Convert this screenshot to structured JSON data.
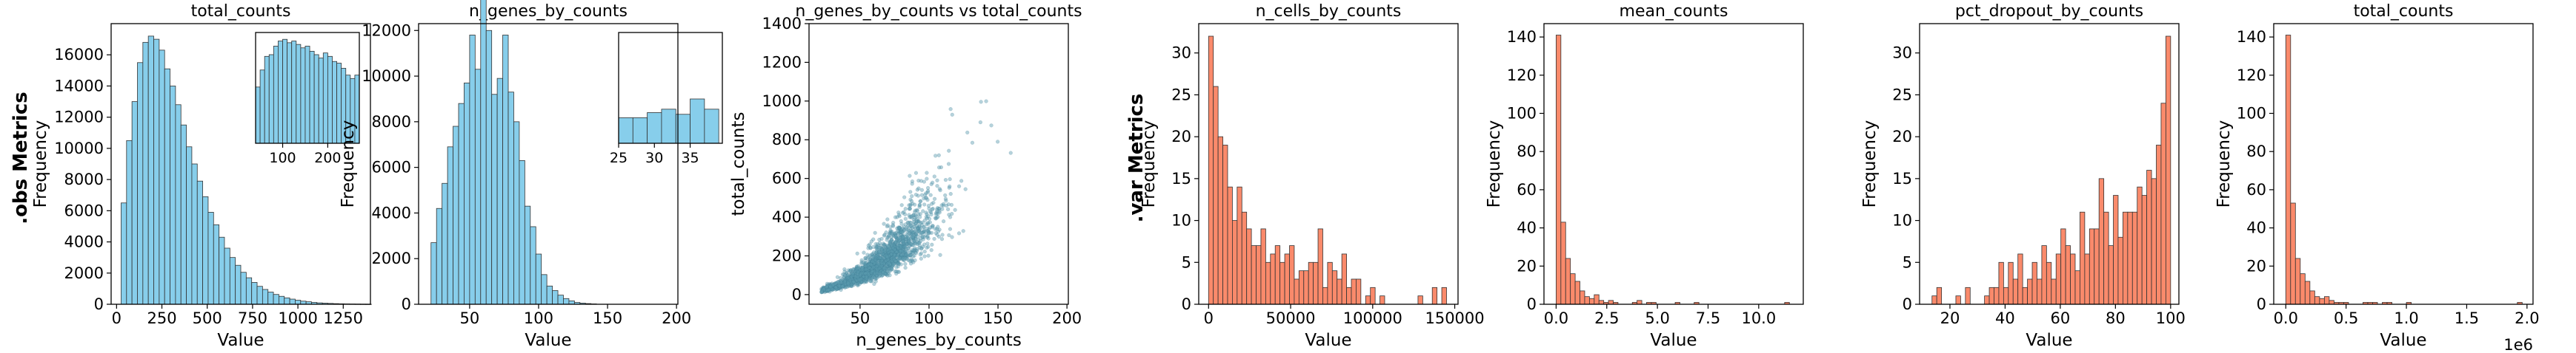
{
  "row_labels": {
    "obs": ".obs Metrics",
    "var": ".var Metrics"
  },
  "colors": {
    "obs": "#87CEEB",
    "var": "#FA8A6B",
    "scatter": "#5B9BB0",
    "edge": "#333333"
  },
  "chart_data": [
    {
      "type": "bar",
      "id": "p1",
      "title": "total_counts",
      "xlabel": "Value",
      "ylabel": "Frequency",
      "row": "obs",
      "binStart": 25,
      "binWidth": 30,
      "xlim": [
        -30,
        1400
      ],
      "ylim": [
        0,
        18000
      ],
      "xticks": [
        0,
        250,
        500,
        750,
        1000,
        1250
      ],
      "yticks": [
        0,
        2000,
        4000,
        6000,
        8000,
        10000,
        12000,
        14000,
        16000
      ],
      "values": [
        6500,
        10500,
        13000,
        15500,
        16800,
        17200,
        17000,
        16300,
        15100,
        14000,
        12800,
        11500,
        10100,
        9000,
        7900,
        6900,
        5900,
        5100,
        4300,
        3600,
        3000,
        2500,
        2050,
        1700,
        1400,
        1150,
        950,
        780,
        630,
        510,
        410,
        330,
        260,
        200,
        160,
        120,
        90,
        70,
        55,
        40,
        30,
        22,
        16,
        12,
        8,
        6
      ],
      "inset": {
        "binStart": 40,
        "binWidth": 10,
        "xlim": [
          40,
          270
        ],
        "ylim": [
          0,
          6500
        ],
        "xticks": [
          100,
          200
        ],
        "values": [
          3300,
          4300,
          5100,
          5200,
          5700,
          6000,
          6100,
          5900,
          6000,
          5800,
          5600,
          5700,
          5400,
          5200,
          5000,
          5300,
          5100,
          4800,
          4700,
          4400,
          4000,
          3800,
          4000
        ]
      }
    },
    {
      "type": "bar",
      "id": "p2",
      "title": "n_genes_by_counts",
      "xlabel": "Value",
      "ylabel": "Frequency",
      "row": "obs",
      "binStart": 22,
      "binWidth": 4,
      "xlim": [
        13,
        201
      ],
      "ylim": [
        0,
        12300
      ],
      "xticks": [
        50,
        100,
        150,
        200
      ],
      "yticks": [
        0,
        2000,
        4000,
        6000,
        8000,
        10000,
        12000
      ],
      "values": [
        2700,
        4200,
        5300,
        6900,
        7800,
        8800,
        9700,
        11800,
        10300,
        13400,
        12000,
        9200,
        9900,
        11800,
        9300,
        8000,
        6300,
        4300,
        3400,
        2200,
        1300,
        800,
        600,
        400,
        250,
        150,
        80,
        50,
        30,
        15
      ],
      "inset": {
        "binStart": 25,
        "binWidth": 2,
        "xlim": [
          25,
          39.5
        ],
        "ylim": [
          0,
          6500
        ],
        "xticks": [
          25,
          30,
          35
        ],
        "values": [
          1500,
          1500,
          1800,
          2000,
          1700,
          2600,
          2000
        ]
      }
    },
    {
      "type": "scatter",
      "id": "p3",
      "title": "n_genes_by_counts vs total_counts",
      "xlabel": "n_genes_by_counts",
      "ylabel": "total_counts",
      "xlim": [
        13,
        201
      ],
      "ylim": [
        -50,
        1400
      ],
      "xticks": [
        50,
        100,
        150,
        200
      ],
      "yticks": [
        0,
        200,
        400,
        600,
        800,
        1000,
        1200,
        1400
      ]
    },
    {
      "type": "bar",
      "id": "p4",
      "title": "n_cells_by_counts",
      "xlabel": "Value",
      "ylabel": "Frequency",
      "row": "var",
      "binStart": 0,
      "binWidth": 2900,
      "xlim": [
        -6000,
        152000
      ],
      "ylim": [
        0,
        33.5
      ],
      "xticks": [
        0,
        50000,
        100000,
        150000
      ],
      "yticks": [
        0,
        5,
        10,
        15,
        20,
        25,
        30
      ],
      "values": [
        32,
        26,
        20,
        19,
        14,
        10,
        14,
        11,
        9,
        7,
        7,
        9,
        5,
        6,
        7,
        5,
        6,
        7,
        3,
        4,
        4,
        5,
        5,
        9,
        2,
        5,
        4,
        3,
        6,
        2,
        3,
        3,
        0,
        1,
        2,
        0,
        1,
        0,
        0,
        0,
        0,
        0,
        0,
        0,
        1,
        0,
        0,
        2,
        0,
        2
      ]
    },
    {
      "type": "bar",
      "id": "p5",
      "title": "mean_counts",
      "xlabel": "Value",
      "ylabel": "Frequency",
      "row": "var",
      "binStart": 0,
      "binWidth": 0.235,
      "xlim": [
        -0.6,
        12.2
      ],
      "ylim": [
        0,
        147
      ],
      "xticks": [
        0.0,
        2.5,
        5.0,
        7.5,
        10.0
      ],
      "yticks": [
        0,
        20,
        40,
        60,
        80,
        100,
        120,
        140
      ],
      "values": [
        141,
        43,
        24,
        16,
        12,
        7,
        4,
        3,
        5,
        2,
        1,
        2,
        1,
        0,
        0,
        0,
        1,
        2,
        0,
        1,
        1,
        0,
        0,
        0,
        0,
        1,
        0,
        0,
        0,
        1,
        0,
        0,
        0,
        0,
        0,
        0,
        0,
        0,
        0,
        0,
        0,
        0,
        0,
        0,
        0,
        0,
        0,
        0,
        1
      ]
    },
    {
      "type": "bar",
      "id": "p6",
      "title": "pct_dropout_by_counts",
      "xlabel": "Value",
      "ylabel": "Frequency",
      "row": "var",
      "binStart": 13.5,
      "binWidth": 1.73,
      "xlim": [
        9,
        103
      ],
      "ylim": [
        0,
        33.5
      ],
      "xticks": [
        20,
        40,
        60,
        80,
        100
      ],
      "yticks": [
        0,
        5,
        10,
        15,
        20,
        25,
        30
      ],
      "values": [
        1,
        2,
        0,
        0,
        0,
        1,
        0,
        2,
        0,
        0,
        0,
        1,
        2,
        2,
        5,
        2,
        5,
        3,
        6,
        2,
        3,
        5,
        3,
        7,
        5,
        3,
        6,
        9,
        7,
        6,
        4,
        11,
        6,
        9,
        9,
        15,
        11,
        7,
        13,
        8,
        11,
        11,
        11,
        14,
        13,
        16,
        15,
        19,
        24,
        32
      ]
    },
    {
      "type": "bar",
      "id": "p7",
      "title": "total_counts",
      "xlabel": "Value",
      "ylabel": "Frequency",
      "row": "var",
      "binStart": 0,
      "binWidth": 0.04,
      "xlim": [
        -0.1,
        2.05
      ],
      "ylim": [
        0,
        147
      ],
      "xticks": [
        0.0,
        0.5,
        1.0,
        1.5,
        2.0
      ],
      "yticks": [
        0,
        20,
        40,
        60,
        80,
        100,
        120,
        140
      ],
      "values": [
        141,
        53,
        24,
        16,
        12,
        7,
        4,
        3,
        4,
        2,
        1,
        1,
        1,
        0,
        0,
        0,
        1,
        1,
        1,
        0,
        1,
        1,
        0,
        0,
        0,
        1,
        0,
        0,
        0,
        0,
        0,
        0,
        0,
        0,
        0,
        0,
        0,
        0,
        0,
        0,
        0,
        0,
        0,
        0,
        0,
        0,
        0,
        0,
        1
      ],
      "offset_text": "1e6"
    }
  ]
}
